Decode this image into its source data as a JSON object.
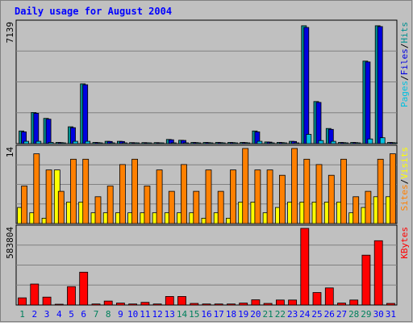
{
  "colors": {
    "background": "#c0c0c0",
    "plot_bg": "#c0c0c0",
    "title": "#0000ff",
    "grid": "#808080",
    "hits": "#009090",
    "files": "#0000e0",
    "pages": "#00c0e0",
    "visits": "#ffff00",
    "sites": "#ff8000",
    "kbytes": "#ff0000",
    "weekend": "#00805c",
    "weekday": "#0000ff",
    "slash": "#000000"
  },
  "chart_data": {
    "title": "Daily usage for August 2004",
    "days": [
      "1",
      "2",
      "3",
      "4",
      "5",
      "6",
      "7",
      "8",
      "9",
      "10",
      "11",
      "12",
      "13",
      "14",
      "15",
      "16",
      "17",
      "18",
      "19",
      "20",
      "21",
      "22",
      "23",
      "24",
      "25",
      "26",
      "27",
      "28",
      "29",
      "30",
      "31"
    ],
    "weekend_days": [
      "1",
      "7",
      "8",
      "14",
      "15",
      "21",
      "22",
      "28",
      "29"
    ],
    "panels": [
      {
        "type": "bar",
        "max_label": "7139",
        "ylim": [
          0,
          7139
        ],
        "legend": [
          {
            "name": "Pages",
            "color": "#00c0e0"
          },
          {
            "name": "Files",
            "color": "#0000e0"
          },
          {
            "name": "Hits",
            "color": "#009090"
          }
        ],
        "series": [
          {
            "name": "Hits",
            "values": [
              750,
              1850,
              1500,
              70,
              1000,
              3550,
              70,
              140,
              140,
              60,
              60,
              60,
              250,
              200,
              70,
              70,
              70,
              70,
              70,
              750,
              100,
              70,
              140,
              7000,
              2500,
              900,
              70,
              70,
              4900,
              7000,
              70
            ]
          },
          {
            "name": "Files",
            "values": [
              700,
              1800,
              1450,
              60,
              950,
              3500,
              60,
              130,
              130,
              50,
              50,
              50,
              230,
              190,
              60,
              60,
              60,
              60,
              60,
              700,
              90,
              60,
              130,
              6900,
              2450,
              850,
              60,
              60,
              4850,
              6950,
              60
            ]
          },
          {
            "name": "Pages",
            "values": [
              140,
              140,
              70,
              30,
              140,
              140,
              30,
              30,
              30,
              30,
              30,
              30,
              30,
              30,
              30,
              30,
              30,
              30,
              30,
              140,
              30,
              30,
              30,
              550,
              180,
              140,
              30,
              30,
              280,
              350,
              30
            ]
          }
        ]
      },
      {
        "type": "bar",
        "max_label": "14",
        "ylim": [
          0,
          14
        ],
        "legend": [
          {
            "name": "Sites",
            "color": "#ff8000"
          },
          {
            "name": "Visits",
            "color": "#ffff00"
          }
        ],
        "series": [
          {
            "name": "Visits",
            "values": [
              3,
              2,
              1,
              10,
              4,
              4,
              2,
              2,
              2,
              2,
              2,
              2,
              2,
              2,
              2,
              1,
              2,
              1,
              4,
              4,
              2,
              3,
              4,
              4,
              4,
              4,
              4,
              2,
              3,
              5,
              5
            ]
          },
          {
            "name": "Sites",
            "values": [
              7,
              13,
              10,
              6,
              12,
              12,
              5,
              7,
              11,
              12,
              7,
              10,
              6,
              11,
              6,
              10,
              6,
              10,
              14,
              10,
              10,
              9,
              14,
              12,
              11,
              9,
              12,
              5,
              6,
              12,
              13
            ]
          }
        ]
      },
      {
        "type": "bar",
        "max_label": "583804",
        "ylim": [
          0,
          583804
        ],
        "legend": [
          {
            "name": "KBytes",
            "color": "#ff0000"
          }
        ],
        "series": [
          {
            "name": "KBytes",
            "values": [
              55000,
              160000,
              60000,
              5000,
              140000,
              250000,
              8000,
              30000,
              15000,
              8000,
              20000,
              8000,
              65000,
              65000,
              12000,
              8000,
              8000,
              8000,
              15000,
              40000,
              12000,
              38000,
              38000,
              583804,
              95000,
              130000,
              15000,
              38000,
              380000,
              490000,
              12000
            ]
          }
        ]
      }
    ]
  }
}
